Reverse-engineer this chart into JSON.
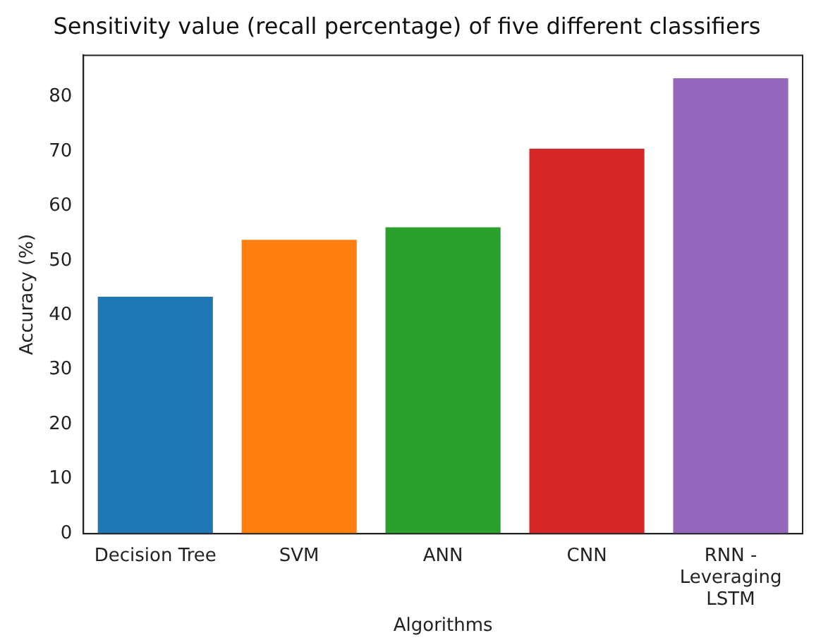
{
  "chart_data": {
    "type": "bar",
    "title": "Sensitivity value (recall percentage) of five different classifiers",
    "xlabel": "Algorithms",
    "ylabel": "Accuracy (%)",
    "categories": [
      "Decision Tree",
      "SVM",
      "ANN",
      "CNN",
      "RNN - Leveraging LSTM"
    ],
    "values": [
      43.4,
      53.8,
      56.1,
      70.5,
      83.4
    ],
    "colors": [
      "#1f77b4",
      "#ff7f0e",
      "#2ca02c",
      "#d62728",
      "#9467bd"
    ],
    "ylim": [
      0,
      87.6
    ],
    "yticks": [
      0,
      10,
      20,
      30,
      40,
      50,
      60,
      70,
      80
    ],
    "grid": false,
    "legend": false
  }
}
